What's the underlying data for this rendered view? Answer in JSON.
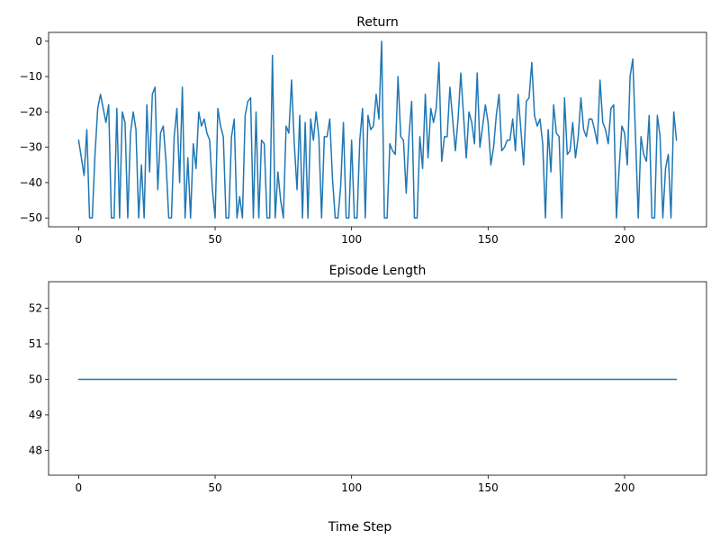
{
  "chart_data": [
    {
      "type": "line",
      "title": "Return",
      "xlabel": "",
      "ylabel": "",
      "xlim": [
        -11,
        230
      ],
      "ylim": [
        -52.5,
        2.5
      ],
      "xticks": [
        0,
        50,
        100,
        150,
        200
      ],
      "yticks": [
        0,
        -10,
        -20,
        -30,
        -40,
        -50
      ],
      "grid": false,
      "series": [
        {
          "color": "#1f77b4",
          "y": [
            -28,
            -33,
            -38,
            -25,
            -50,
            -50,
            -32,
            -19,
            -15,
            -19,
            -23,
            -18,
            -50,
            -50,
            -19,
            -50,
            -20,
            -23,
            -50,
            -26,
            -20,
            -25,
            -50,
            -35,
            -50,
            -18,
            -37,
            -15,
            -13,
            -42,
            -26,
            -24,
            -34,
            -50,
            -50,
            -27,
            -19,
            -40,
            -13,
            -50,
            -33,
            -50,
            -29,
            -36,
            -20,
            -24,
            -22,
            -26,
            -28,
            -42,
            -50,
            -19,
            -24,
            -27,
            -50,
            -50,
            -27,
            -22,
            -50,
            -44,
            -50,
            -21,
            -17,
            -16,
            -50,
            -20,
            -50,
            -28,
            -29,
            -50,
            -50,
            -4,
            -50,
            -37,
            -45,
            -50,
            -24,
            -26,
            -11,
            -29,
            -42,
            -21,
            -50,
            -23,
            -50,
            -22,
            -28,
            -20,
            -27,
            -50,
            -27,
            -27,
            -22,
            -39,
            -50,
            -50,
            -41,
            -23,
            -50,
            -50,
            -28,
            -50,
            -50,
            -28,
            -19,
            -50,
            -21,
            -25,
            -24,
            -15,
            -22,
            0,
            -50,
            -50,
            -29,
            -31,
            -32,
            -10,
            -27,
            -28,
            -43,
            -27,
            -17,
            -50,
            -50,
            -27,
            -36,
            -15,
            -33,
            -19,
            -23,
            -19,
            -6,
            -34,
            -27,
            -27,
            -13,
            -22,
            -31,
            -22,
            -9,
            -21,
            -33,
            -20,
            -23,
            -29,
            -9,
            -30,
            -24,
            -18,
            -23,
            -35,
            -30,
            -21,
            -15,
            -31,
            -30,
            -28,
            -28,
            -22,
            -31,
            -15,
            -25,
            -35,
            -17,
            -16,
            -6,
            -21,
            -24,
            -22,
            -29,
            -50,
            -25,
            -37,
            -18,
            -26,
            -27,
            -50,
            -16,
            -32,
            -31,
            -23,
            -33,
            -27,
            -16,
            -25,
            -27,
            -22,
            -22,
            -25,
            -29,
            -11,
            -23,
            -25,
            -29,
            -19,
            -18,
            -50,
            -36,
            -24,
            -26,
            -35,
            -10,
            -5,
            -27,
            -50,
            -27,
            -32,
            -34,
            -21,
            -50,
            -50,
            -21,
            -27,
            -50,
            -36,
            -32,
            -50,
            -20,
            -28
          ]
        }
      ]
    },
    {
      "type": "line",
      "title": "Episode Length",
      "xlabel": "Time Step",
      "ylabel": "",
      "xlim": [
        -11,
        230
      ],
      "ylim": [
        47.3,
        52.75
      ],
      "xticks": [
        0,
        50,
        100,
        150,
        200
      ],
      "yticks": [
        48,
        49,
        50,
        51,
        52
      ],
      "grid": false,
      "series": [
        {
          "color": "#1f77b4",
          "x": [
            0,
            219
          ],
          "y": [
            50,
            50
          ]
        }
      ]
    }
  ]
}
